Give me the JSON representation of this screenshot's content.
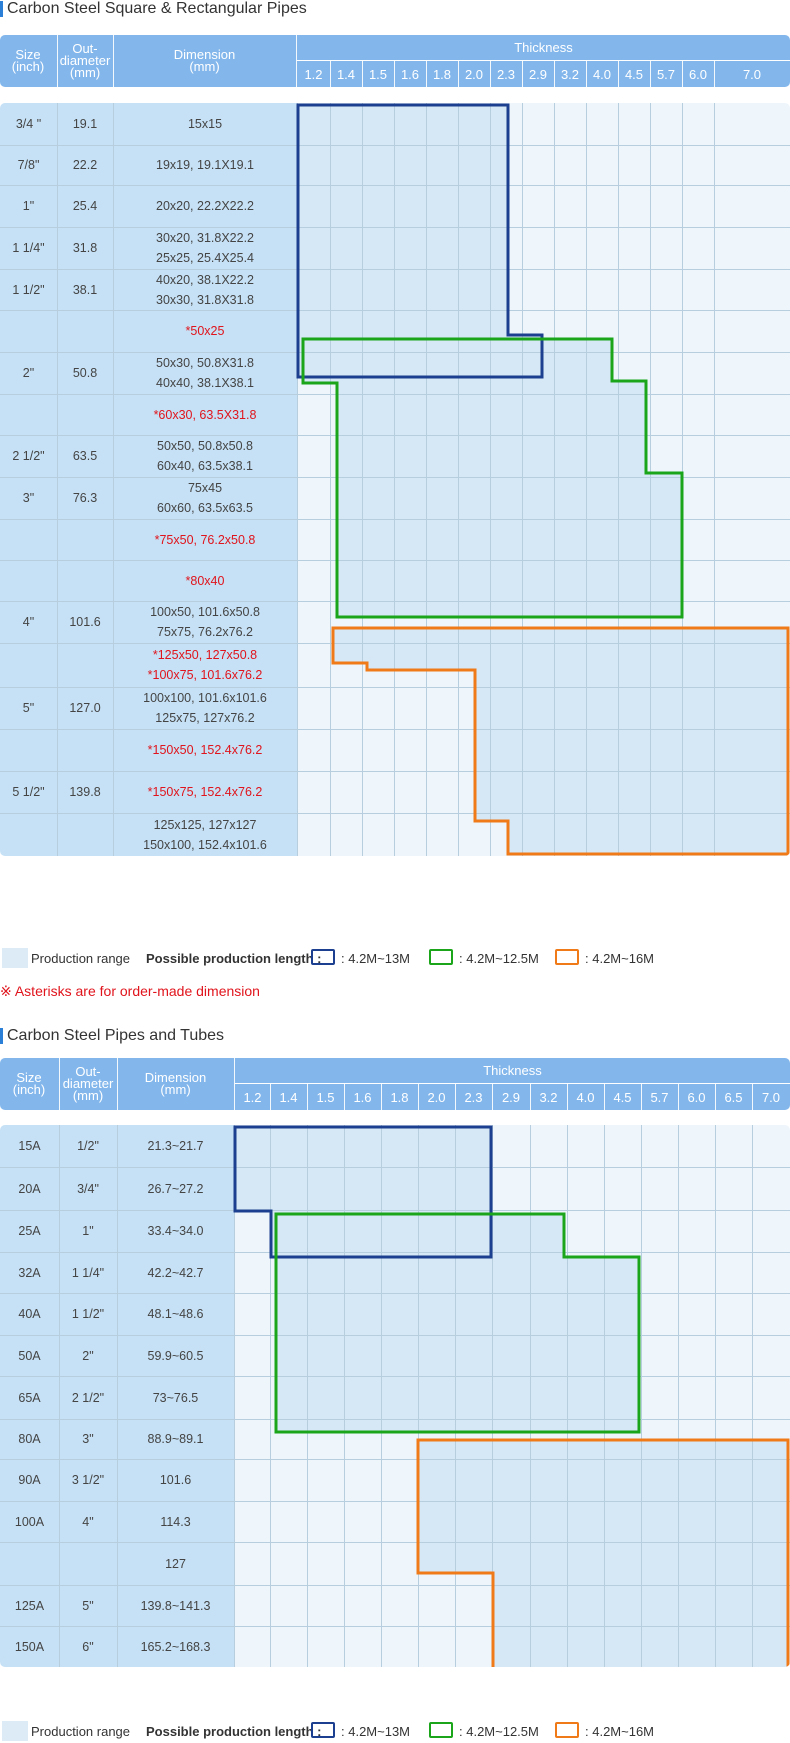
{
  "section1": {
    "title": "Carbon Steel Square & Rectangular Pipes",
    "headers": {
      "size": [
        "Size",
        "(inch)"
      ],
      "outdiameter": [
        "Out-",
        "diameter",
        "(mm)"
      ],
      "dimension": [
        "Dimension",
        "(mm)"
      ],
      "thickness": "Thickness"
    },
    "thickness_values": [
      "1.2",
      "1.4",
      "1.5",
      "1.6",
      "1.8",
      "2.0",
      "2.3",
      "2.9",
      "3.2",
      "4.0",
      "4.5",
      "5.7",
      "6.0",
      "7.0"
    ],
    "rows": [
      {
        "size": "3/4 \"",
        "od": "19.1",
        "dims": [
          "15x15"
        ],
        "red": false
      },
      {
        "size": "7/8\"",
        "od": "22.2",
        "dims": [
          "19x19, 19.1X19.1"
        ],
        "red": false
      },
      {
        "size": "1\"",
        "od": "25.4",
        "dims": [
          "20x20, 22.2X22.2"
        ],
        "red": false
      },
      {
        "size": "1 1/4\"",
        "od": "31.8",
        "dims": [
          "30x20, 31.8X22.2",
          "25x25, 25.4X25.4"
        ],
        "red": false
      },
      {
        "size": "1 1/2\"",
        "od": "38.1",
        "dims": [
          "40x20, 38.1X22.2",
          "30x30, 31.8X31.8"
        ],
        "red": false
      },
      {
        "size": "",
        "od": "",
        "dims": [
          "*50x25"
        ],
        "red": true
      },
      {
        "size": "2\"",
        "od": "50.8",
        "dims": [
          "50x30, 50.8X31.8",
          "40x40, 38.1X38.1"
        ],
        "red": false
      },
      {
        "size": "",
        "od": "",
        "dims": [
          "*60x30, 63.5X31.8"
        ],
        "red": true
      },
      {
        "size": "2 1/2\"",
        "od": "63.5",
        "dims": [
          "50x50, 50.8x50.8",
          "60x40, 63.5x38.1"
        ],
        "red": false
      },
      {
        "size": "3\"",
        "od": "76.3",
        "dims": [
          "75x45",
          "60x60, 63.5x63.5"
        ],
        "red": false
      },
      {
        "size": "",
        "od": "",
        "dims": [
          "*75x50, 76.2x50.8"
        ],
        "red": true
      },
      {
        "size": "",
        "od": "",
        "dims": [
          "*80x40"
        ],
        "red": true
      },
      {
        "size": "4\"",
        "od": "101.6",
        "dims": [
          "100x50, 101.6x50.8",
          "75x75, 76.2x76.2"
        ],
        "red": false
      },
      {
        "size": "",
        "od": "",
        "dims": [
          "*125x50, 127x50.8",
          "*100x75, 101.6x76.2"
        ],
        "red": true
      },
      {
        "size": "5\"",
        "od": "127.0",
        "dims": [
          "100x100, 101.6x101.6",
          "125x75, 127x76.2"
        ],
        "red": false
      },
      {
        "size": "",
        "od": "",
        "dims": [
          "*150x50, 152.4x76.2"
        ],
        "red": true
      },
      {
        "size": "5 1/2\"",
        "od": "139.8",
        "dims": [
          "*150x75, 152.4x76.2"
        ],
        "red": true
      },
      {
        "size": "",
        "od": "",
        "dims": [
          "125x125, 127x127",
          "150x100, 152.4x101.6"
        ],
        "red": false
      }
    ],
    "legend": {
      "range_label": "Production range",
      "length_label": "Possible production length :",
      "blue": ": 4.2M~13M",
      "green": ": 4.2M~12.5M",
      "orange": ": 4.2M~16M"
    },
    "note": "※ Asterisks are for order-made dimension"
  },
  "section2": {
    "title": "Carbon Steel Pipes and Tubes",
    "headers": {
      "size": [
        "Size",
        "(inch)"
      ],
      "outdiameter": [
        "Out-",
        "diameter",
        "(mm)"
      ],
      "dimension": [
        "Dimension",
        "(mm)"
      ],
      "thickness": "Thickness"
    },
    "thickness_values": [
      "1.2",
      "1.4",
      "1.5",
      "1.6",
      "1.8",
      "2.0",
      "2.3",
      "2.9",
      "3.2",
      "4.0",
      "4.5",
      "5.7",
      "6.0",
      "6.5",
      "7.0"
    ],
    "rows": [
      {
        "size": "15A",
        "od": "1/2\"",
        "dims": [
          "21.3~21.7"
        ]
      },
      {
        "size": "20A",
        "od": "3/4\"",
        "dims": [
          "26.7~27.2"
        ]
      },
      {
        "size": "25A",
        "od": "1\"",
        "dims": [
          "33.4~34.0"
        ]
      },
      {
        "size": "32A",
        "od": "1 1/4\"",
        "dims": [
          "42.2~42.7"
        ]
      },
      {
        "size": "40A",
        "od": "1 1/2\"",
        "dims": [
          "48.1~48.6"
        ]
      },
      {
        "size": "50A",
        "od": "2\"",
        "dims": [
          "59.9~60.5"
        ]
      },
      {
        "size": "65A",
        "od": "2 1/2\"",
        "dims": [
          "73~76.5"
        ]
      },
      {
        "size": "80A",
        "od": "3\"",
        "dims": [
          "88.9~89.1"
        ]
      },
      {
        "size": "90A",
        "od": "3 1/2\"",
        "dims": [
          "101.6"
        ]
      },
      {
        "size": "100A",
        "od": "4\"",
        "dims": [
          "114.3"
        ]
      },
      {
        "size": "",
        "od": "",
        "dims": [
          "127"
        ]
      },
      {
        "size": "125A",
        "od": "5\"",
        "dims": [
          "139.8~141.3"
        ]
      },
      {
        "size": "150A",
        "od": "6\"",
        "dims": [
          "165.2~168.3"
        ]
      }
    ],
    "legend": {
      "range_label": "Production range",
      "length_label": "Possible production length :",
      "blue": ": 4.2M~13M",
      "green": ": 4.2M~12.5M",
      "orange": ": 4.2M~16M"
    }
  },
  "colors": {
    "header_bg": "#83b7ec",
    "left_cells": "#c6e1f5",
    "grid_bg": "#eef6fc",
    "range_fill": "#ddebf7",
    "blue": "#1d3f8f",
    "green": "#1aa51a",
    "orange": "#f07a18",
    "red_text": "#e0141c"
  }
}
